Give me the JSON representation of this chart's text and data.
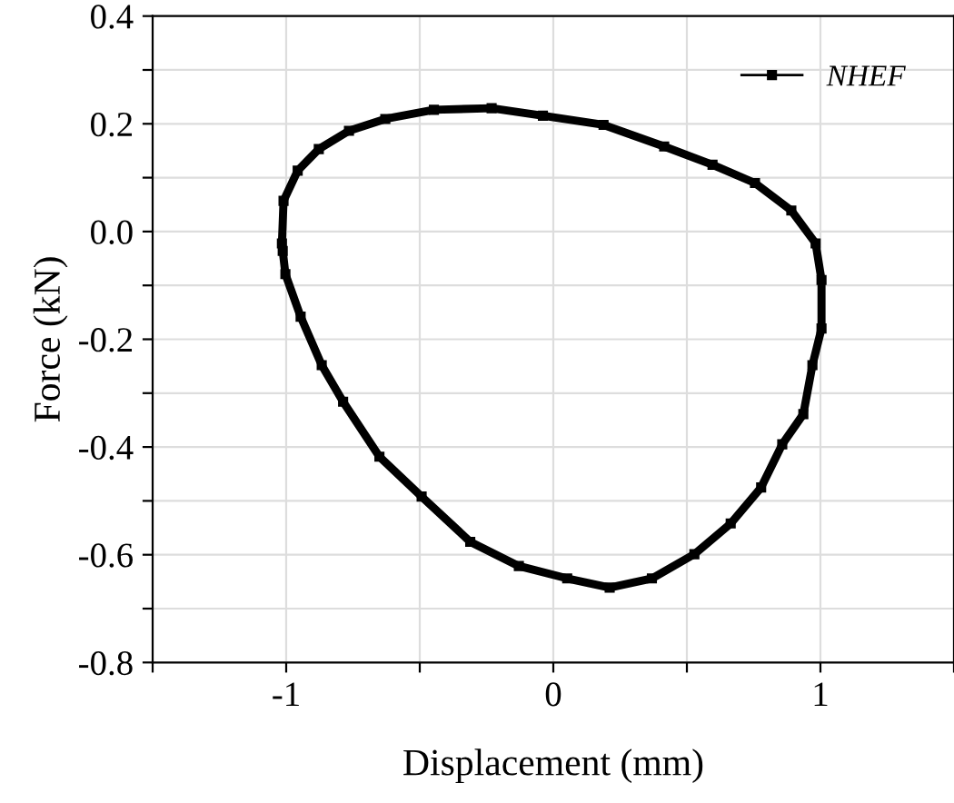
{
  "chart_data": {
    "type": "line",
    "xlabel": "Displacement (mm)",
    "ylabel": "Force (kN)",
    "xlim": [
      -1.5,
      1.5
    ],
    "xticks": [
      {
        "value": -1.5,
        "label": null
      },
      -1,
      {
        "value": -0.5,
        "label": null
      },
      0,
      {
        "value": 0.5,
        "label": null
      },
      1,
      {
        "value": 1.5,
        "label": null
      }
    ],
    "ylim": [
      -0.8,
      0.4
    ],
    "yticks": [
      -0.8,
      {
        "value": -0.7,
        "label": null
      },
      -0.6,
      {
        "value": -0.5,
        "label": null
      },
      -0.4,
      {
        "value": -0.3,
        "label": null
      },
      -0.2,
      {
        "value": -0.1,
        "label": null
      },
      {
        "value": 0,
        "label": "0.0"
      },
      {
        "value": 0.1,
        "label": null
      },
      0.2,
      {
        "value": 0.3,
        "label": null
      },
      0.4
    ],
    "grid": true,
    "legend": "top right",
    "marker": "square",
    "line_style": "solid",
    "x": [
      -1.016,
      -1.01,
      -0.957,
      -0.878,
      -0.765,
      -0.629,
      -0.447,
      -0.231,
      -0.039,
      0.188,
      0.415,
      0.596,
      0.755,
      0.891,
      0.982,
      1.004,
      1.004,
      0.97,
      0.936,
      0.857,
      0.778,
      0.664,
      0.528,
      0.369,
      0.211,
      0.052,
      -0.129,
      -0.311,
      -0.493,
      -0.651,
      -0.787,
      -0.867,
      -0.946,
      -1.003,
      -1.013
    ],
    "series": [
      {
        "name": "NHEF",
        "color": "#000000",
        "values": [
          -0.022,
          0.057,
          0.113,
          0.153,
          0.187,
          0.209,
          0.226,
          0.229,
          0.215,
          0.198,
          0.158,
          0.124,
          0.09,
          0.039,
          -0.022,
          -0.09,
          -0.18,
          -0.248,
          -0.339,
          -0.395,
          -0.475,
          -0.542,
          -0.599,
          -0.644,
          -0.661,
          -0.644,
          -0.621,
          -0.576,
          -0.492,
          -0.418,
          -0.316,
          -0.248,
          -0.158,
          -0.079,
          -0.036
        ]
      }
    ]
  }
}
